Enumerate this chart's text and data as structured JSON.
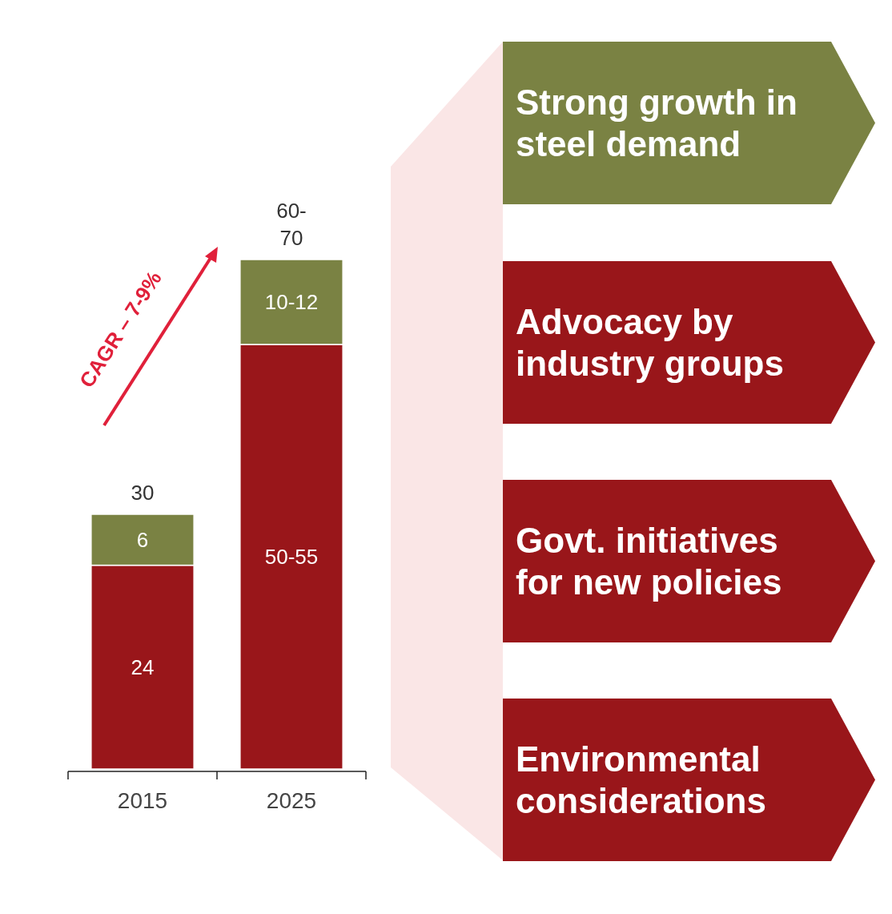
{
  "chart_data": {
    "type": "bar",
    "stacked": true,
    "categories": [
      "2015",
      "2025"
    ],
    "series": [
      {
        "color": "#99161a",
        "values": [
          24,
          50
        ],
        "value_labels": [
          "24",
          "50-55"
        ]
      },
      {
        "color": "#7a8243",
        "values": [
          6,
          10
        ],
        "value_labels": [
          "6",
          "10-12"
        ]
      }
    ],
    "totals": [
      "30",
      "60-70"
    ],
    "annotations": [
      "CAGR – 7-9%",
      "Strong growth in steel demand",
      "Advocacy by industry groups",
      "Govt. initiatives for new policies",
      "Environmental considerations"
    ]
  }
}
